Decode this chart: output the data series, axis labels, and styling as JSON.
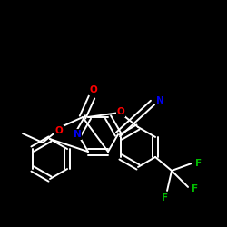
{
  "background": "#000000",
  "bond_color": "#ffffff",
  "atom_colors": {
    "N": "#0000ee",
    "O": "#ff0000",
    "F": "#00bb00",
    "C": "#ffffff"
  },
  "bond_width": 1.4,
  "figsize": [
    2.5,
    2.5
  ],
  "dpi": 100
}
